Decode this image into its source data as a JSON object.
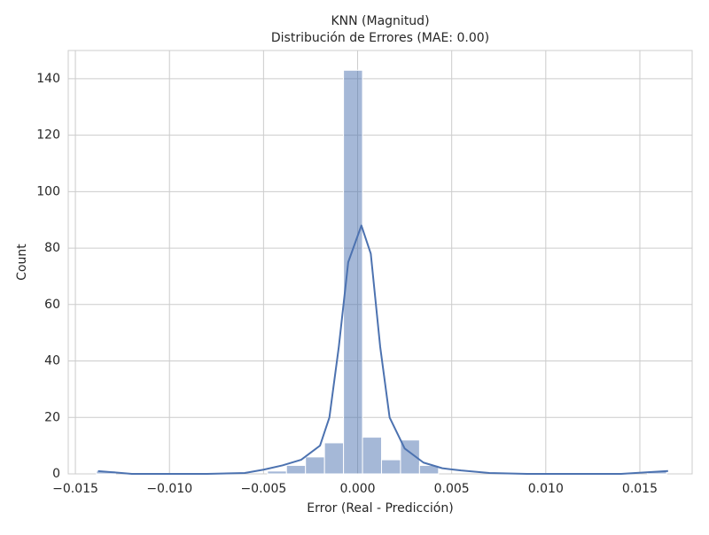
{
  "chart_data": {
    "type": "histogram",
    "title": "KNN (Magnitud)",
    "subtitle": "Distribución de Errores (MAE: 0.00)",
    "x_label": "Error (Real - Predicción)",
    "y_label": "Count",
    "bins": [
      -0.01388,
      -0.01287,
      -0.01186,
      -0.01085,
      -0.00984,
      -0.00883,
      -0.00782,
      -0.00681,
      -0.0058,
      -0.00479,
      -0.00378,
      -0.00277,
      -0.00176,
      -0.00075,
      0.00026,
      0.00127,
      0.00228,
      0.00329,
      0.0043,
      0.00531,
      0.00632,
      0.00733,
      0.00834,
      0.00935,
      0.01036,
      0.01137,
      0.01238,
      0.01339,
      0.0144,
      0.01541,
      0.01642
    ],
    "counts": [
      1,
      0,
      0,
      0,
      0,
      0,
      0,
      0,
      0,
      1,
      3,
      6,
      11,
      143,
      13,
      5,
      12,
      3,
      0,
      0,
      0,
      0,
      0,
      0,
      0,
      0,
      0,
      0,
      0,
      1
    ],
    "color": "#4c72b0",
    "kde": {
      "x": [
        -0.0138,
        -0.012,
        -0.008,
        -0.006,
        -0.005,
        -0.004,
        -0.003,
        -0.002,
        -0.0015,
        -0.001,
        -0.0005,
        0.0002,
        0.0007,
        0.0012,
        0.0017,
        0.0025,
        0.0035,
        0.0045,
        0.0055,
        0.007,
        0.009,
        0.014,
        0.0165
      ],
      "values": [
        1,
        0,
        0,
        0.3,
        1.5,
        3,
        5,
        10,
        20,
        45,
        75,
        88,
        78,
        45,
        20,
        9,
        4,
        2,
        1.2,
        0.3,
        0,
        0,
        1
      ],
      "color": "#4c72b0"
    },
    "xlim": [
      -0.01538,
      0.01778
    ],
    "ylim": [
      0,
      150
    ],
    "xticks": [
      {
        "value": -0.015,
        "label": "−0.015"
      },
      {
        "value": -0.01,
        "label": "−0.010"
      },
      {
        "value": -0.005,
        "label": "−0.005"
      },
      {
        "value": 0,
        "label": "0.000"
      },
      0.005,
      {
        "value": 0.01,
        "label": "0.010"
      },
      0.015
    ],
    "yticks": [
      0,
      20,
      40,
      60,
      80,
      100,
      120,
      140
    ],
    "grid": true
  }
}
